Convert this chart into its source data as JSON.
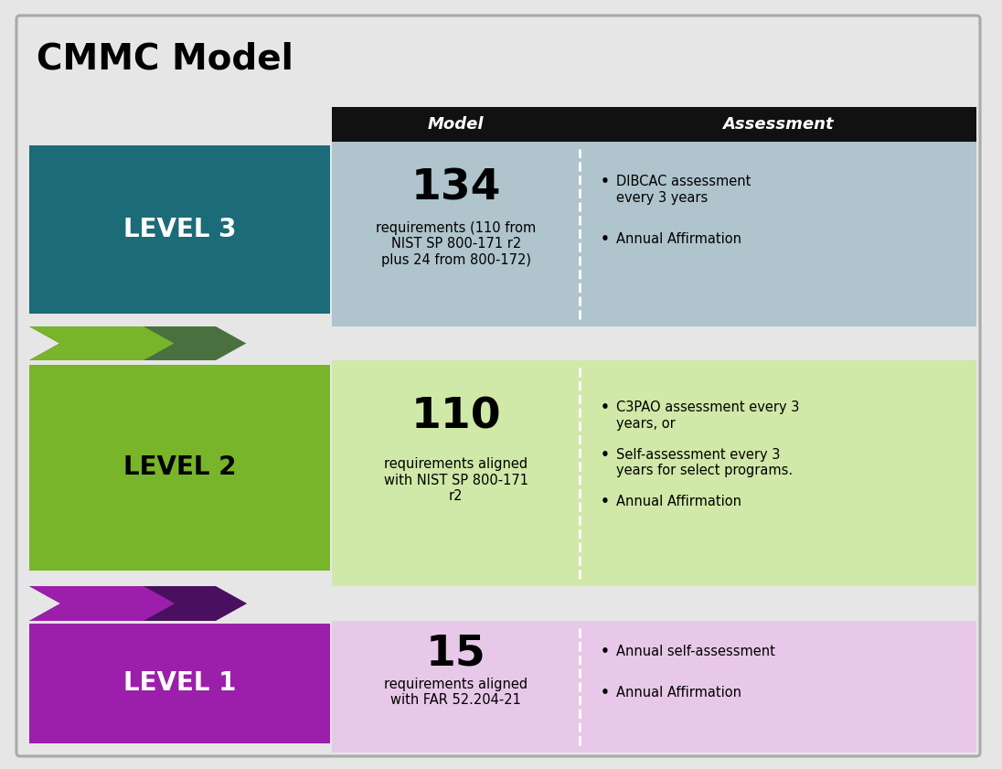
{
  "title": "CMMC Model",
  "background_color": "#e6e6e6",
  "header_bg": "#111111",
  "col_headers": [
    "Model",
    "Assessment"
  ],
  "levels": [
    {
      "name": "LEVEL 3",
      "box_color": "#1c6b78",
      "arrow_color": "#4a7040",
      "text_color": "#ffffff",
      "row_bg": "#afc4cc",
      "number": "134",
      "model_text": "requirements (110 from\nNIST SP 800-171 r2\nplus 24 from 800-172)",
      "assessment_bullets": [
        "DIBCAC assessment\nevery 3 years",
        "Annual Affirmation"
      ]
    },
    {
      "name": "LEVEL 2",
      "box_color": "#78b52a",
      "arrow_color": "#4a1060",
      "text_color": "#000000",
      "row_bg": "#d0e8a8",
      "number": "110",
      "model_text": "requirements aligned\nwith NIST SP 800-171\nr2",
      "assessment_bullets": [
        "C3PAO assessment every 3\nyears, or",
        "Self-assessment every 3\nyears for select programs.",
        "Annual Affirmation"
      ]
    },
    {
      "name": "LEVEL 1",
      "box_color": "#9b1faa",
      "arrow_color": "#000000",
      "text_color": "#ffffff",
      "row_bg": "#e8c8e8",
      "number": "15",
      "model_text": "requirements aligned\nwith FAR 52.204-21",
      "assessment_bullets": [
        "Annual self-assessment",
        "Annual Affirmation"
      ]
    }
  ]
}
